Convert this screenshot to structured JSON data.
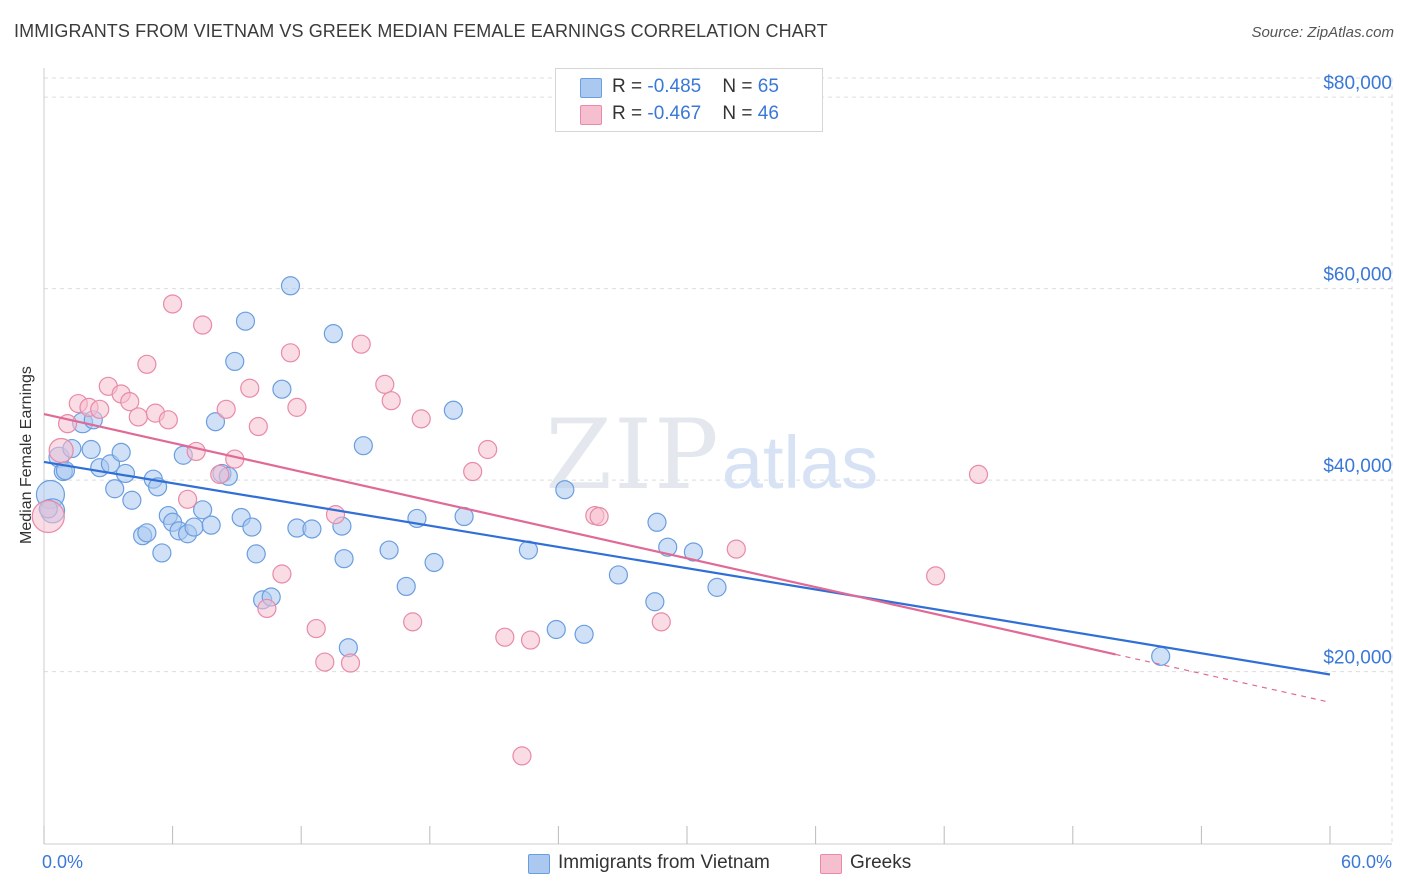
{
  "title": "IMMIGRANTS FROM VIETNAM VS GREEK MEDIAN FEMALE EARNINGS CORRELATION CHART",
  "source": "Source: ZipAtlas.com",
  "watermark": {
    "zip": "ZIP",
    "atlas": "atlas"
  },
  "colors": {
    "vietnam_fill": "#aac8f0",
    "vietnam_stroke": "#6a9ee0",
    "vietnam_line": "#2f6fd6",
    "greek_fill": "#f6bfd0",
    "greek_stroke": "#e88aa8",
    "greek_line": "#e06a95",
    "axis_text": "#3a78d8",
    "grid": "#dddddd"
  },
  "legend_top": {
    "rows": [
      {
        "r_label": "R = ",
        "r_value": "-0.485",
        "n_label": "N = ",
        "n_value": "65"
      },
      {
        "r_label": "R = ",
        "r_value": "-0.467",
        "n_label": "N = ",
        "n_value": "46"
      }
    ]
  },
  "legend_bottom": {
    "items": [
      {
        "label": "Immigrants from Vietnam"
      },
      {
        "label": "Greeks"
      }
    ]
  },
  "chart_data": {
    "type": "scatter",
    "title": "IMMIGRANTS FROM VIETNAM VS GREEK MEDIAN FEMALE EARNINGS CORRELATION CHART",
    "xlabel": "",
    "ylabel": "Median Female Earnings",
    "xlim": [
      0,
      60
    ],
    "ylim": [
      2000,
      82000
    ],
    "x_tick_labels": [
      "0.0%",
      "60.0%"
    ],
    "y_ticks": [
      20000,
      40000,
      60000,
      80000
    ],
    "y_tick_labels": [
      "$20,000",
      "$40,000",
      "$60,000",
      "$80,000"
    ],
    "grid": true,
    "legend_position": "top-center",
    "series": [
      {
        "name": "Immigrants from Vietnam",
        "r": -0.485,
        "n": 65,
        "trend": {
          "x": [
            0,
            60
          ],
          "y": [
            41900,
            19700
          ]
        },
        "points": [
          [
            0.3,
            38500,
            14
          ],
          [
            0.4,
            36800,
            12
          ],
          [
            0.7,
            42400,
            10
          ],
          [
            0.9,
            40900,
            9
          ],
          [
            1.3,
            43300,
            9
          ],
          [
            1.8,
            46000,
            10
          ],
          [
            2.2,
            43200,
            9
          ],
          [
            2.6,
            41300,
            9
          ],
          [
            3.1,
            41700,
            9
          ],
          [
            3.3,
            39100,
            9
          ],
          [
            3.6,
            42900,
            9
          ],
          [
            3.8,
            40700,
            9
          ],
          [
            4.1,
            37900,
            9
          ],
          [
            4.6,
            34200,
            9
          ],
          [
            4.8,
            34500,
            9
          ],
          [
            5.1,
            40100,
            9
          ],
          [
            5.3,
            39300,
            9
          ],
          [
            5.5,
            32400,
            9
          ],
          [
            5.8,
            36300,
            9
          ],
          [
            6.0,
            35600,
            9
          ],
          [
            6.3,
            34700,
            9
          ],
          [
            6.5,
            42600,
            9
          ],
          [
            6.7,
            34400,
            9
          ],
          [
            7.0,
            35100,
            9
          ],
          [
            7.4,
            36900,
            9
          ],
          [
            7.8,
            35300,
            9
          ],
          [
            8.0,
            46100,
            9
          ],
          [
            8.3,
            40700,
            9
          ],
          [
            8.6,
            40400,
            9
          ],
          [
            8.9,
            52400,
            9
          ],
          [
            9.2,
            36100,
            9
          ],
          [
            9.4,
            56600,
            9
          ],
          [
            9.7,
            35100,
            9
          ],
          [
            9.9,
            32300,
            9
          ],
          [
            10.2,
            27500,
            9
          ],
          [
            10.6,
            27800,
            9
          ],
          [
            11.1,
            49500,
            9
          ],
          [
            11.5,
            60300,
            9
          ],
          [
            11.8,
            35000,
            9
          ],
          [
            12.5,
            34900,
            9
          ],
          [
            13.5,
            55300,
            9
          ],
          [
            13.9,
            35200,
            9
          ],
          [
            14.0,
            31800,
            9
          ],
          [
            14.2,
            22500,
            9
          ],
          [
            14.9,
            43600,
            9
          ],
          [
            16.1,
            32700,
            9
          ],
          [
            16.9,
            28900,
            9
          ],
          [
            17.4,
            36000,
            9
          ],
          [
            18.2,
            31400,
            9
          ],
          [
            19.1,
            47300,
            9
          ],
          [
            19.6,
            36200,
            9
          ],
          [
            22.6,
            32700,
            9
          ],
          [
            24.3,
            39000,
            9
          ],
          [
            23.9,
            24400,
            9
          ],
          [
            25.2,
            23900,
            9
          ],
          [
            26.8,
            30100,
            9
          ],
          [
            28.6,
            35600,
            9
          ],
          [
            28.5,
            27300,
            9
          ],
          [
            29.1,
            33000,
            9
          ],
          [
            30.3,
            32500,
            9
          ],
          [
            31.4,
            28800,
            9
          ],
          [
            52.1,
            21600,
            9
          ],
          [
            0.2,
            37000,
            9
          ],
          [
            2.3,
            46300,
            9
          ],
          [
            1.0,
            41000,
            9
          ]
        ]
      },
      {
        "name": "Greeks",
        "r": -0.467,
        "n": 46,
        "trend": {
          "x": [
            0,
            50
          ],
          "y": [
            46900,
            21800
          ]
        },
        "trend_extension": {
          "x": [
            50,
            60
          ],
          "y": [
            21800,
            16800
          ]
        },
        "points": [
          [
            0.2,
            36200,
            16
          ],
          [
            0.8,
            43100,
            12
          ],
          [
            1.1,
            45900,
            9
          ],
          [
            1.6,
            48000,
            9
          ],
          [
            2.1,
            47600,
            9
          ],
          [
            2.6,
            47400,
            9
          ],
          [
            3.0,
            49800,
            9
          ],
          [
            3.6,
            49000,
            9
          ],
          [
            4.0,
            48200,
            9
          ],
          [
            4.4,
            46600,
            9
          ],
          [
            4.8,
            52100,
            9
          ],
          [
            5.2,
            47000,
            9
          ],
          [
            5.8,
            46300,
            9
          ],
          [
            6.0,
            58400,
            9
          ],
          [
            6.7,
            38000,
            9
          ],
          [
            7.1,
            43000,
            9
          ],
          [
            7.4,
            56200,
            9
          ],
          [
            8.2,
            40600,
            9
          ],
          [
            8.5,
            47400,
            9
          ],
          [
            8.9,
            42200,
            9
          ],
          [
            9.6,
            49600,
            9
          ],
          [
            10.0,
            45600,
            9
          ],
          [
            10.4,
            26600,
            9
          ],
          [
            11.1,
            30200,
            9
          ],
          [
            11.5,
            53300,
            9
          ],
          [
            11.8,
            47600,
            9
          ],
          [
            12.7,
            24500,
            9
          ],
          [
            13.1,
            21000,
            9
          ],
          [
            13.6,
            36400,
            9
          ],
          [
            14.3,
            20900,
            9
          ],
          [
            14.8,
            54200,
            9
          ],
          [
            15.9,
            50000,
            9
          ],
          [
            16.2,
            48300,
            9
          ],
          [
            17.2,
            25200,
            9
          ],
          [
            17.6,
            46400,
            9
          ],
          [
            20.0,
            40900,
            9
          ],
          [
            20.7,
            43200,
            9
          ],
          [
            21.5,
            23600,
            9
          ],
          [
            22.3,
            11200,
            9
          ],
          [
            22.7,
            23300,
            9
          ],
          [
            25.7,
            36300,
            9
          ],
          [
            25.9,
            36200,
            9
          ],
          [
            28.8,
            25200,
            9
          ],
          [
            32.3,
            32800,
            9
          ],
          [
            41.6,
            30000,
            9
          ],
          [
            43.6,
            40600,
            9
          ]
        ]
      }
    ]
  }
}
